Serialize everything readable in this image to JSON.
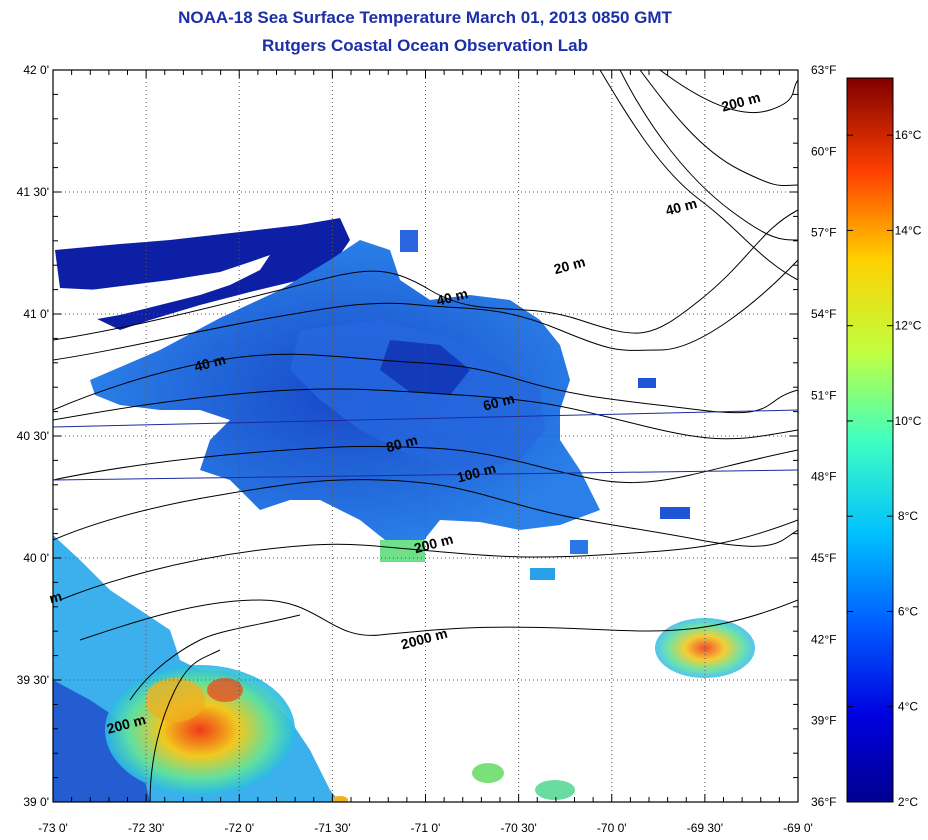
{
  "header": {
    "title_line1": "NOAA-18 Sea Surface Temperature March 01, 2013 0850 GMT",
    "title_line2": "Rutgers Coastal Ocean Observation Lab"
  },
  "map": {
    "lat_range": [
      39.0,
      42.0
    ],
    "lon_range": [
      -73.0,
      -69.0
    ],
    "lat_ticks": [
      "39 0'",
      "39 30'",
      "40 0'",
      "40 30'",
      "41 0'",
      "41 30'",
      "42 0'"
    ],
    "lon_ticks": [
      "-73 0'",
      "-72 30'",
      "-72 0'",
      "-71 30'",
      "-71 0'",
      "-70 30'",
      "-70 0'",
      "-69 30'",
      "-69 0'"
    ],
    "fahrenheit_ticks": [
      "36°F",
      "39°F",
      "42°F",
      "45°F",
      "48°F",
      "51°F",
      "54°F",
      "57°F",
      "60°F",
      "63°F"
    ],
    "celsius_ticks": [
      "2°C",
      "4°C",
      "6°C",
      "8°C",
      "10°C",
      "12°C",
      "14°C",
      "16°C"
    ],
    "celsius_range": [
      2,
      17.2
    ],
    "colors": {
      "title": "#1c2fa8",
      "land": "#ffffff",
      "cold": "#0a1a9c",
      "mid": "#1e6fe6",
      "warm": "#e8d21a",
      "hot": "#e8421a"
    },
    "contour_labels": [
      {
        "text": "200 m",
        "lon": -69.3,
        "lat": 41.85
      },
      {
        "text": "40 m",
        "lon": -69.62,
        "lat": 41.42
      },
      {
        "text": "20 m",
        "lon": -70.22,
        "lat": 41.18
      },
      {
        "text": "40 m",
        "lon": -70.85,
        "lat": 41.05
      },
      {
        "text": "40 m",
        "lon": -72.15,
        "lat": 40.78
      },
      {
        "text": "60 m",
        "lon": -70.6,
        "lat": 40.62
      },
      {
        "text": "80 m",
        "lon": -71.12,
        "lat": 40.45
      },
      {
        "text": "100 m",
        "lon": -70.72,
        "lat": 40.33
      },
      {
        "text": "200 m",
        "lon": -70.95,
        "lat": 40.04
      },
      {
        "text": "2000 m",
        "lon": -71.0,
        "lat": 39.65
      },
      {
        "text": "200 m",
        "lon": -72.6,
        "lat": 39.3
      },
      {
        "text": "m",
        "lon": -72.98,
        "lat": 39.82
      }
    ]
  }
}
